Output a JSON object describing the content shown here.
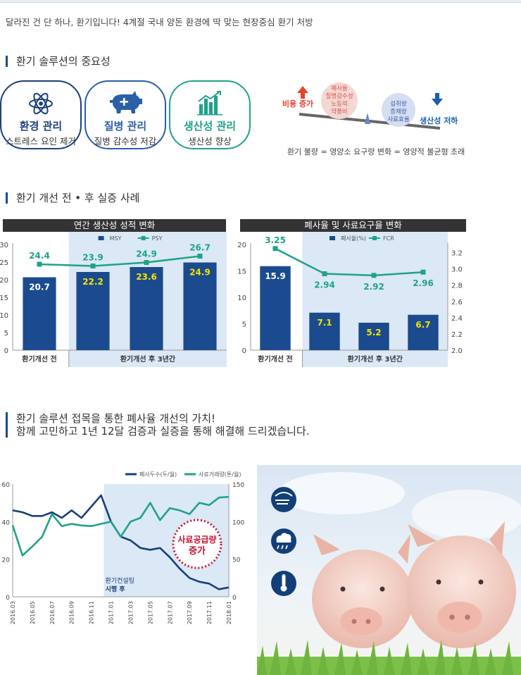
{
  "intro": "달라진 건 단 하나, 환기입니다! 4계절 국내 양돈 환경에 딱 맞는 현장중심 환기 처방",
  "section1": {
    "title": "환기 솔루션의 중요성",
    "cards": [
      {
        "title": "환경 관리",
        "sub": "스트레스 요인 제거",
        "color": "#1b3f7a",
        "icon": "atom-icon"
      },
      {
        "title": "질병 관리",
        "sub": "질병 감수성 저감",
        "color": "#2b5fa8",
        "icon": "pig-icon"
      },
      {
        "title": "생산성 관리",
        "sub": "생산성 향상",
        "color": "#1fa28a",
        "icon": "bar-chart-icon"
      }
    ],
    "seesaw": {
      "left_label": "비용 증가",
      "left_items": [
        "폐사율",
        "질병감수성",
        "노동력",
        "약품비"
      ],
      "right_items": [
        "섭취량",
        "증체량",
        "사료효율"
      ],
      "right_label": "생산성 저하",
      "caption": "환기 불량 = 영양소 요구량 변화 = 영양적 불균형 초래"
    }
  },
  "section2": {
    "title": "환기 개선 전 • 후 실증 사례"
  },
  "chart_data": [
    {
      "type": "bar",
      "title": "연간 생산성 성적 변화",
      "categories": [
        "환기개선 전",
        "",
        "",
        ""
      ],
      "group_labels": [
        "환기개선 전",
        "환기개선 후 3년간"
      ],
      "series": [
        {
          "name": "MSY",
          "type": "bar",
          "values": [
            20.7,
            22.2,
            23.6,
            24.9
          ],
          "color": "#1b4b8e"
        },
        {
          "name": "PSY",
          "type": "line",
          "values": [
            24.4,
            23.9,
            24.9,
            26.7
          ],
          "color": "#1fa28a"
        }
      ],
      "ylim": [
        0,
        30
      ],
      "yticks": [
        0,
        5,
        10,
        15,
        20,
        25,
        30
      ],
      "legend": "top-center"
    },
    {
      "type": "bar",
      "title": "폐사율 및 사료요구율 변화",
      "categories": [
        "환기개선 전",
        "",
        "",
        ""
      ],
      "group_labels": [
        "환기개선 전",
        "환기개선 후 3년간"
      ],
      "series": [
        {
          "name": "폐사율(%)",
          "type": "bar",
          "values": [
            15.9,
            7.1,
            5.2,
            6.7
          ],
          "color": "#1b4b8e",
          "axis": "left"
        },
        {
          "name": "FCR",
          "type": "line",
          "values": [
            3.25,
            2.94,
            2.92,
            2.96
          ],
          "color": "#1fa28a",
          "axis": "right"
        }
      ],
      "ylim": [
        0,
        20
      ],
      "yticks": [
        0,
        5,
        10,
        15,
        20
      ],
      "y2lim": [
        2.0,
        3.3
      ],
      "y2ticks": [
        "2.0",
        "2.2",
        "2.4",
        "2.6",
        "2.8",
        "3.0",
        "3.2"
      ],
      "legend": "top-center"
    },
    {
      "type": "line",
      "x": [
        "2016.03",
        "2016.04",
        "2016.05",
        "2016.06",
        "2016.07",
        "2016.08",
        "2016.09",
        "2016.10",
        "2016.11",
        "2016.12",
        "2017.01",
        "2017.02",
        "2017.03",
        "2017.04",
        "2017.05",
        "2017.06",
        "2017.07",
        "2017.08",
        "2017.09",
        "2017.10",
        "2017.11",
        "2017.12",
        "2018.01"
      ],
      "xticks": [
        "2016.03",
        "2016.05",
        "2016.07",
        "2016.09",
        "2016.11",
        "2017.01",
        "2017.03",
        "2017.05",
        "2017.07",
        "2017.09",
        "2017.11",
        "2018.01"
      ],
      "series": [
        {
          "name": "폐사두수(두/월)",
          "axis": "left",
          "color": "#1b3f7a",
          "values": [
            46,
            45,
            43,
            43,
            45,
            42,
            46,
            42,
            48,
            54,
            40,
            32,
            30,
            26,
            25,
            26,
            21,
            15,
            10,
            8,
            7,
            4,
            5
          ]
        },
        {
          "name": "사료거래량(톤/월)",
          "axis": "right",
          "color": "#1fa28a",
          "values": [
            95,
            55,
            67,
            80,
            110,
            94,
            97,
            95,
            94,
            97,
            100,
            80,
            100,
            105,
            125,
            102,
            118,
            115,
            110,
            125,
            122,
            132,
            133
          ]
        }
      ],
      "ylim": [
        0,
        60
      ],
      "yticks": [
        0,
        20,
        40,
        60
      ],
      "y2lim": [
        0,
        150
      ],
      "y2ticks": [
        0,
        50,
        100,
        150
      ],
      "highlight_start": "2016.12",
      "annotations": [
        "환기컨설팅",
        "시행 후"
      ],
      "badge": [
        "사료공급량",
        "증가"
      ],
      "legend": "top-right"
    }
  ],
  "section3": {
    "line1": "환기 솔루션 접목을 통한 폐사율 개선의 가치!",
    "line2": "함께 고민하고 1년 12달 검증과 실증을 통해 해결해 드리겠습니다."
  },
  "photo": {
    "icons": [
      "wind-weather-icon",
      "rain-cloud-icon",
      "thermometer-icon"
    ]
  }
}
